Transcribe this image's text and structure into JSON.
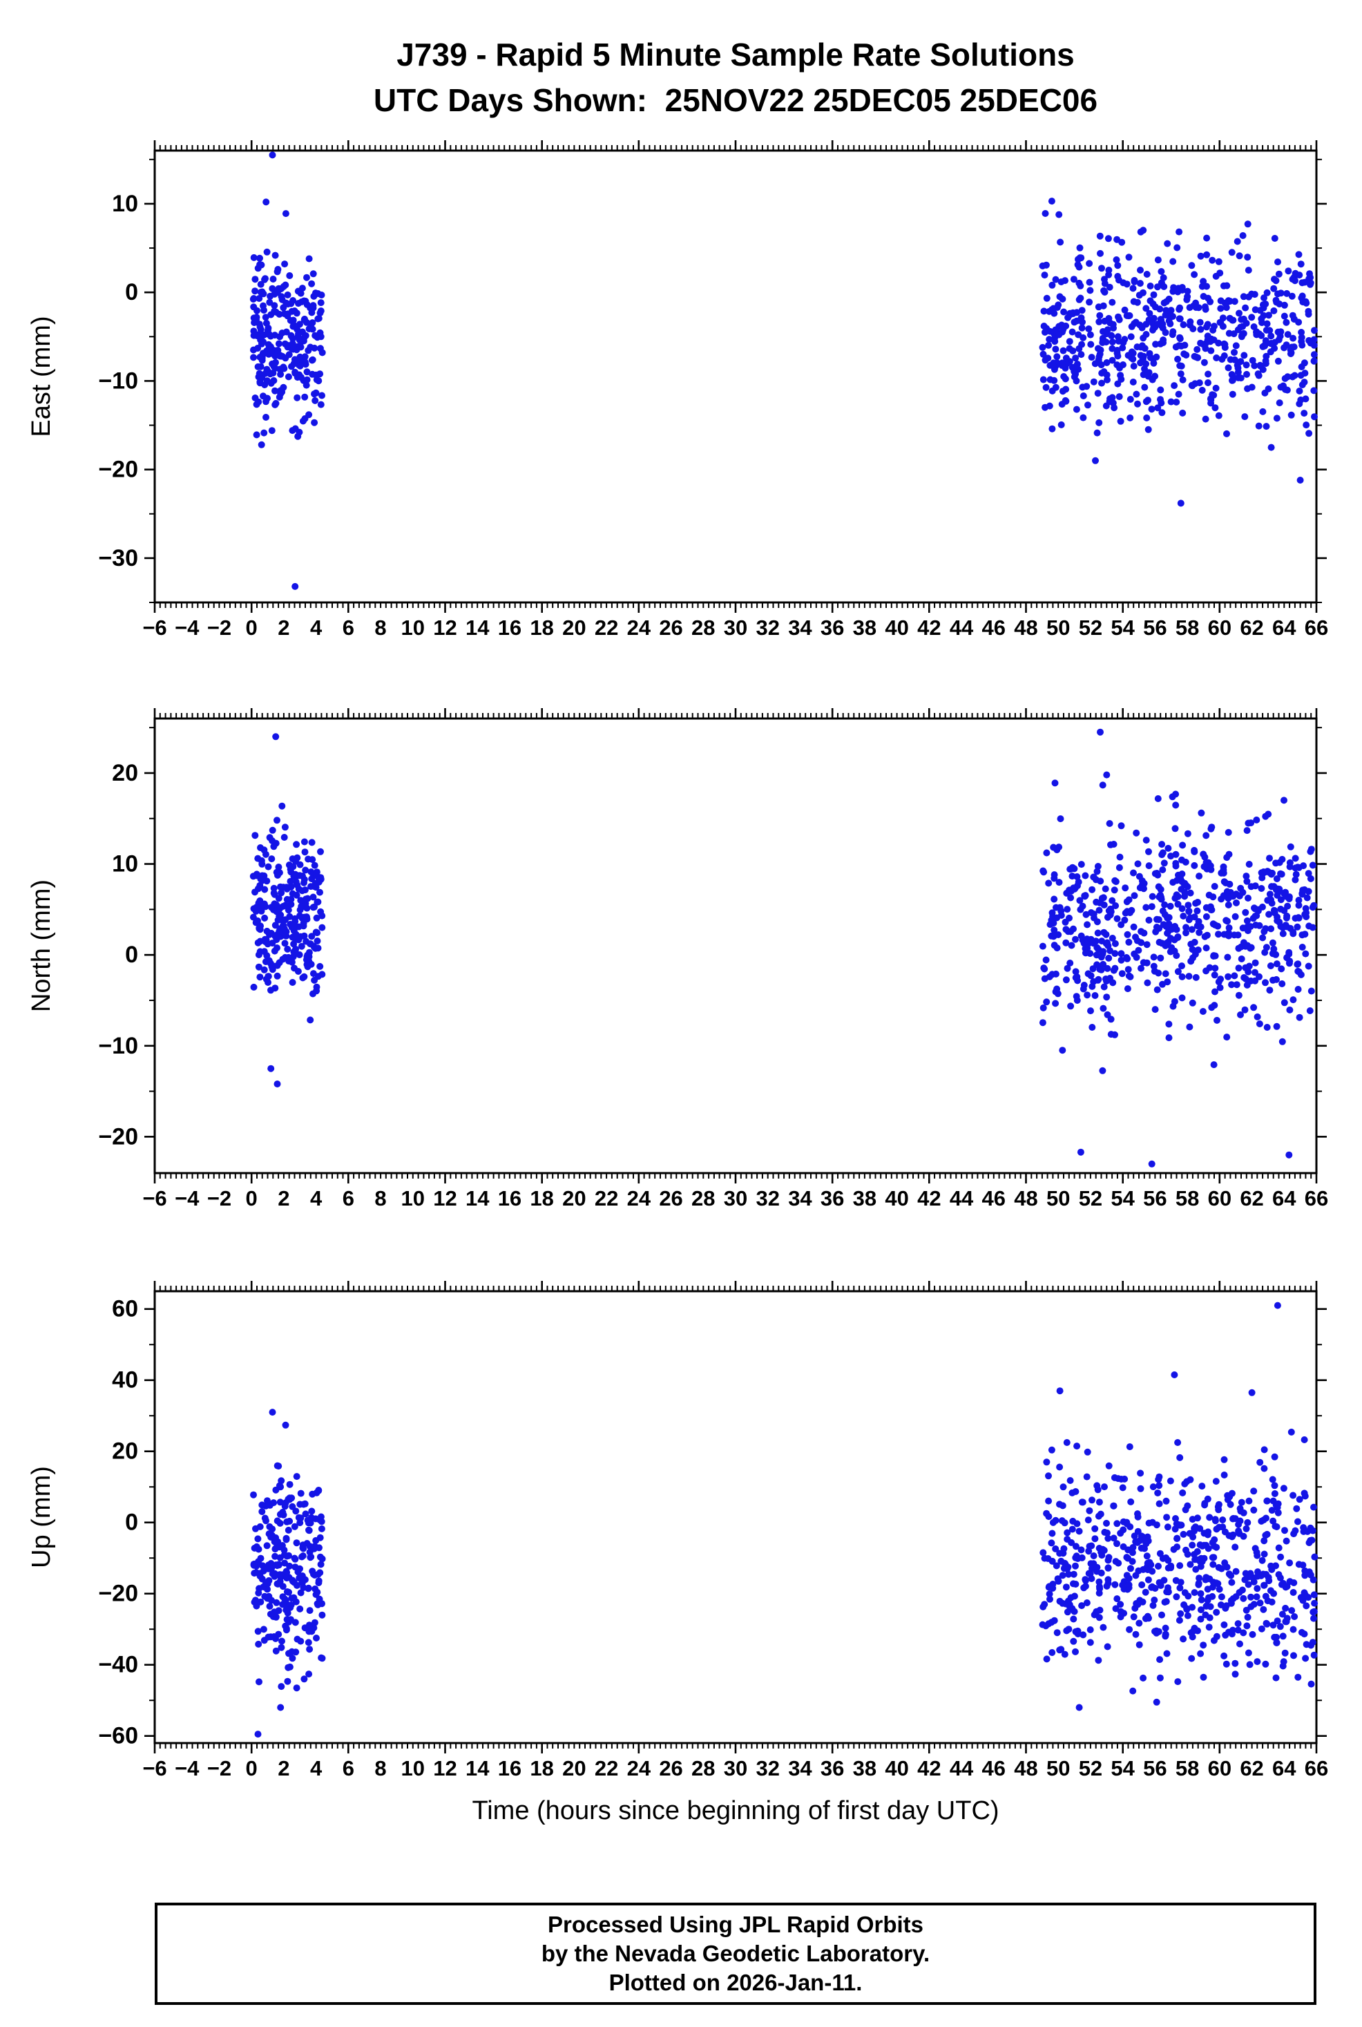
{
  "title": {
    "line1": "J739 - Rapid 5 Minute Sample Rate Solutions",
    "line2": "UTC Days Shown:  25NOV22 25DEC05 25DEC06"
  },
  "xaxis_title": "Time (hours since beginning of first day UTC)",
  "footer": {
    "line1": "Processed Using JPL Rapid Orbits",
    "line2": "by the Nevada Geodetic Laboratory.",
    "line3": "Plotted on 2026-Jan-11."
  },
  "style": {
    "point_color": "#1414e6",
    "axis_color": "#000000",
    "background": "#ffffff"
  },
  "chart_data": [
    {
      "type": "scatter",
      "ylabel": "East (mm)",
      "xlim": [
        -6,
        66
      ],
      "ylim": [
        -35,
        16
      ],
      "yticks": [
        -30,
        -20,
        -10,
        0,
        10
      ],
      "ytick_minor_step": 5,
      "xtick_label_step": 2,
      "xtick_major_step": 6,
      "xtick_minor_step": 0.3333333,
      "legend": "none",
      "grid": false,
      "clusters": [
        {
          "x0": 0.1,
          "x1": 4.4,
          "n": 270,
          "mean": -5.5,
          "sd": 4.6,
          "ymin": -17.5,
          "ymax": 9.5,
          "seed": 11
        },
        {
          "x0": 49.0,
          "x1": 65.9,
          "n": 640,
          "mean": -5.0,
          "sd": 4.8,
          "ymin": -16.0,
          "ymax": 9.0,
          "seed": 12
        }
      ],
      "outliers": [
        [
          1.3,
          15.5
        ],
        [
          2.7,
          -33.2
        ],
        [
          0.9,
          10.2
        ],
        [
          49.6,
          10.3
        ],
        [
          57.6,
          -23.8
        ],
        [
          65.0,
          -21.2
        ],
        [
          52.3,
          -19.0
        ],
        [
          63.2,
          -17.5
        ],
        [
          49.2,
          8.9
        ]
      ]
    },
    {
      "type": "scatter",
      "ylabel": "North (mm)",
      "xlim": [
        -6,
        66
      ],
      "ylim": [
        -24,
        26
      ],
      "yticks": [
        -20,
        -10,
        0,
        10,
        20
      ],
      "ytick_minor_step": 5,
      "xtick_label_step": 2,
      "xtick_major_step": 6,
      "xtick_minor_step": 0.3333333,
      "legend": "none",
      "grid": false,
      "clusters": [
        {
          "x0": 0.1,
          "x1": 4.4,
          "n": 270,
          "mean": 4.5,
          "sd": 4.8,
          "ymin": -9.5,
          "ymax": 17.0,
          "seed": 21
        },
        {
          "x0": 49.0,
          "x1": 65.9,
          "n": 640,
          "mean": 3.5,
          "sd": 5.5,
          "ymin": -13.0,
          "ymax": 19.5,
          "seed": 22
        }
      ],
      "outliers": [
        [
          1.5,
          24.0
        ],
        [
          1.2,
          -12.5
        ],
        [
          1.6,
          -14.2
        ],
        [
          52.6,
          24.5
        ],
        [
          53.0,
          19.8
        ],
        [
          51.4,
          -21.7
        ],
        [
          55.8,
          -23.0
        ],
        [
          64.3,
          -22.0
        ],
        [
          49.8,
          18.9
        ]
      ]
    },
    {
      "type": "scatter",
      "ylabel": "Up (mm)",
      "xlim": [
        -6,
        66
      ],
      "ylim": [
        -62,
        65
      ],
      "yticks": [
        -60,
        -40,
        -20,
        0,
        20,
        40,
        60
      ],
      "ytick_minor_step": 10,
      "xtick_label_step": 2,
      "xtick_major_step": 6,
      "xtick_minor_step": 0.3333333,
      "legend": "none",
      "grid": false,
      "clusters": [
        {
          "x0": 0.1,
          "x1": 4.4,
          "n": 270,
          "mean": -13.0,
          "sd": 14.0,
          "ymin": -49.0,
          "ymax": 28.0,
          "seed": 31
        },
        {
          "x0": 49.0,
          "x1": 65.9,
          "n": 640,
          "mean": -13.0,
          "sd": 14.0,
          "ymin": -48.0,
          "ymax": 30.0,
          "seed": 32
        }
      ],
      "outliers": [
        [
          1.3,
          31.0
        ],
        [
          0.4,
          -59.5
        ],
        [
          1.8,
          -52.0
        ],
        [
          2.8,
          -46.5
        ],
        [
          63.6,
          61.0
        ],
        [
          57.2,
          41.5
        ],
        [
          50.1,
          37.0
        ],
        [
          62.0,
          36.5
        ],
        [
          51.3,
          -52.0
        ],
        [
          56.1,
          -50.5
        ]
      ]
    }
  ]
}
